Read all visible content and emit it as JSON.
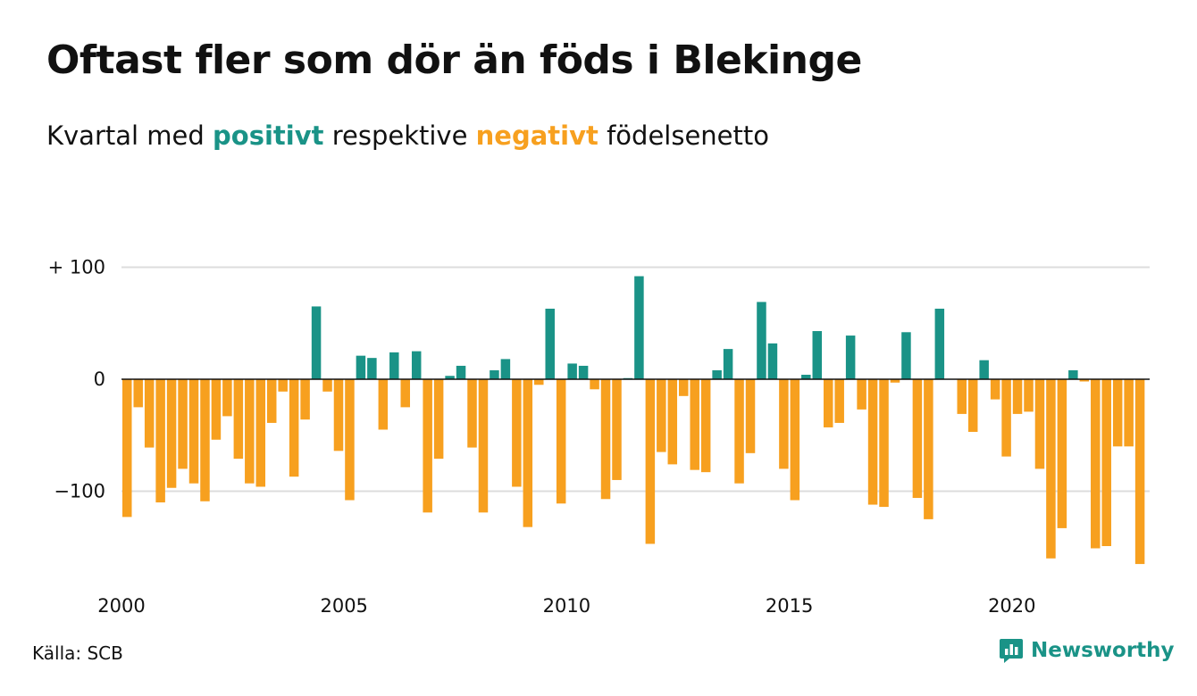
{
  "header": {
    "title": "Oftast fler som dör än föds i Blekinge",
    "subtitle_prefix": "Kvartal med",
    "subtitle_positive": "positivt",
    "subtitle_middle": "respektive",
    "subtitle_negative": "negativt",
    "subtitle_suffix": "födelsenetto"
  },
  "footer": {
    "source": "Källa: SCB",
    "brand": "Newsworthy"
  },
  "colors": {
    "positive": "#1a9387",
    "negative": "#f7a01f",
    "grid": "#dddddd",
    "axis": "#111111"
  },
  "chart_data": {
    "type": "bar",
    "x_start_year": 2000,
    "x_ticks": [
      "2000",
      "2005",
      "2010",
      "2015",
      "2020"
    ],
    "y_ticks": [
      {
        "value": 100,
        "label": "+ 100"
      },
      {
        "value": 0,
        "label": "0"
      },
      {
        "value": -100,
        "label": "−100"
      }
    ],
    "ylim": [
      -170,
      100
    ],
    "grid": true,
    "values": [
      -123,
      -25,
      -61,
      -110,
      -97,
      -80,
      -93,
      -109,
      -54,
      -33,
      -71,
      -93,
      -96,
      -39,
      -11,
      -87,
      -36,
      65,
      -11,
      -64,
      -108,
      21,
      19,
      -45,
      24,
      -25,
      25,
      -119,
      -71,
      3,
      12,
      -61,
      -119,
      8,
      18,
      -96,
      -132,
      -5,
      63,
      -111,
      14,
      12,
      -9,
      -107,
      -90,
      1,
      92,
      -147,
      -65,
      -76,
      -15,
      -81,
      -83,
      8,
      27,
      -93,
      -66,
      69,
      32,
      -80,
      -108,
      4,
      43,
      -43,
      -39,
      39,
      -27,
      -112,
      -114,
      -3,
      42,
      -106,
      -125,
      63,
      0,
      -31,
      -47,
      17,
      -18,
      -69,
      -31,
      -29,
      -80,
      -160,
      -133,
      8,
      -2,
      -151,
      -149,
      -60,
      -60,
      -165
    ]
  }
}
